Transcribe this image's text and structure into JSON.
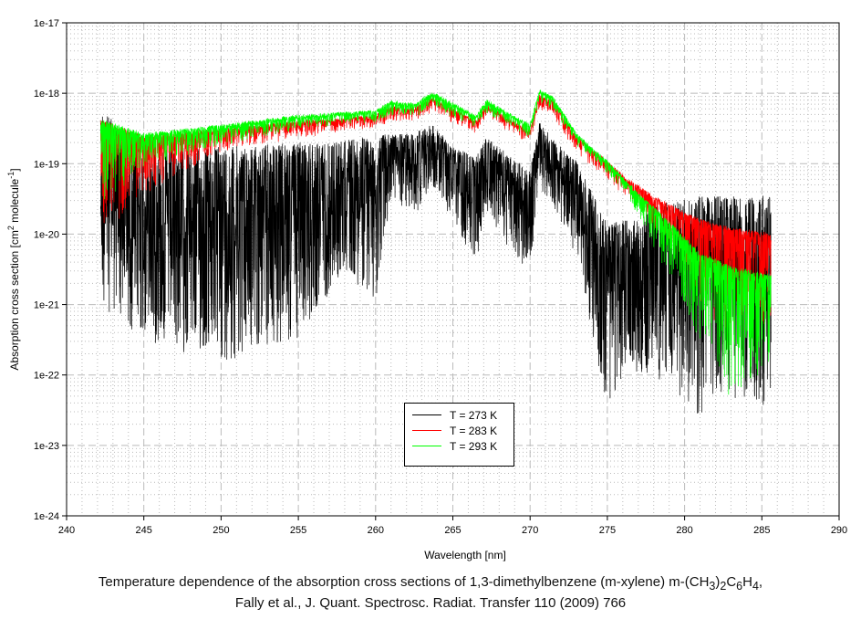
{
  "chart_data": {
    "type": "line",
    "title": "",
    "xlabel": "Wavelength [nm]",
    "ylabel": "Absorption cross section [cm2 molecule-1]",
    "xlim": [
      240,
      290
    ],
    "ylim": [
      1e-24,
      1e-17
    ],
    "yscale": "log",
    "x_ticks": [
      "240",
      "245",
      "250",
      "255",
      "260",
      "265",
      "270",
      "275",
      "280",
      "285",
      "290"
    ],
    "y_ticks": [
      "1e-24",
      "1e-23",
      "1e-22",
      "1e-21",
      "1e-20",
      "1e-19",
      "1e-18",
      "1e-17"
    ],
    "grid": true,
    "legend_position": "bottom-center",
    "x": [
      242.2,
      245,
      250,
      255,
      258,
      260,
      261,
      262.5,
      263.7,
      265,
      266.5,
      267.2,
      268.5,
      270,
      270.6,
      271.5,
      273,
      275,
      276,
      277,
      278,
      279.5,
      281,
      283,
      285.6
    ],
    "series": [
      {
        "name": "T = 273 K",
        "color": "#000000",
        "log10_upper": [
          -18.2,
          -18.8,
          -18.75,
          -18.7,
          -18.65,
          -18.6,
          -18.55,
          -18.55,
          -18.43,
          -18.75,
          -18.9,
          -18.6,
          -18.85,
          -19.1,
          -18.4,
          -18.65,
          -18.95,
          -19.85,
          -19.8,
          -19.75,
          -19.6,
          -19.5,
          -19.45,
          -19.45,
          -19.45
        ],
        "log10_lower": [
          -21.0,
          -21.5,
          -21.8,
          -21.5,
          -20.5,
          -21.0,
          -19.5,
          -19.7,
          -19.3,
          -19.8,
          -20.4,
          -19.6,
          -20.2,
          -20.5,
          -19.3,
          -19.6,
          -20.3,
          -22.5,
          -22.0,
          -22.0,
          -22.0,
          -22.3,
          -22.6,
          -22.3,
          -22.5
        ]
      },
      {
        "name": "T = 283 K",
        "color": "#ff0000",
        "log10_upper": [
          -18.36,
          -18.6,
          -18.5,
          -18.38,
          -18.34,
          -18.3,
          -18.18,
          -18.2,
          -18.05,
          -18.2,
          -18.38,
          -18.15,
          -18.33,
          -18.52,
          -18.0,
          -18.1,
          -18.6,
          -18.95,
          -19.15,
          -19.3,
          -19.45,
          -19.62,
          -19.78,
          -19.9,
          -19.98
        ],
        "log10_lower": [
          -20.0,
          -19.4,
          -18.8,
          -18.6,
          -18.5,
          -18.5,
          -18.35,
          -18.4,
          -18.2,
          -18.4,
          -18.55,
          -18.3,
          -18.5,
          -18.7,
          -18.2,
          -18.3,
          -18.8,
          -19.2,
          -19.4,
          -19.6,
          -19.9,
          -20.3,
          -20.9,
          -21.5,
          -21.3
        ]
      },
      {
        "name": "T = 293 K",
        "color": "#00ff00",
        "log10_upper": [
          -18.36,
          -18.56,
          -18.44,
          -18.3,
          -18.26,
          -18.23,
          -18.1,
          -18.13,
          -17.97,
          -18.13,
          -18.3,
          -18.08,
          -18.26,
          -18.43,
          -17.94,
          -18.04,
          -18.56,
          -18.95,
          -19.18,
          -19.4,
          -19.6,
          -19.92,
          -20.25,
          -20.44,
          -20.57
        ],
        "log10_lower": [
          -19.6,
          -19.0,
          -18.7,
          -18.5,
          -18.4,
          -18.4,
          -18.3,
          -18.3,
          -18.15,
          -18.3,
          -18.45,
          -18.25,
          -18.4,
          -18.6,
          -18.1,
          -18.2,
          -18.7,
          -19.1,
          -19.35,
          -19.7,
          -20.2,
          -20.8,
          -21.5,
          -22.3,
          -22.0
        ]
      }
    ]
  },
  "ylabel_parts": {
    "a": "Absorption cross section [cm",
    "sup1": "2",
    "b": " molecule",
    "sup2": "-1",
    "c": "]"
  },
  "caption": {
    "line1_a": "Temperature dependence of the absorption cross sections of 1,3-dimethylbenzene (m-xylene) m-(CH",
    "sub1": "3",
    "line1_b": ")",
    "sub2": "2",
    "line1_c": "C",
    "sub3": "6",
    "line1_d": "H",
    "sub4": "4",
    "line1_e": ",",
    "line2": "Fally et al., J. Quant. Spectrosc. Radiat. Transfer 110 (2009) 766"
  }
}
